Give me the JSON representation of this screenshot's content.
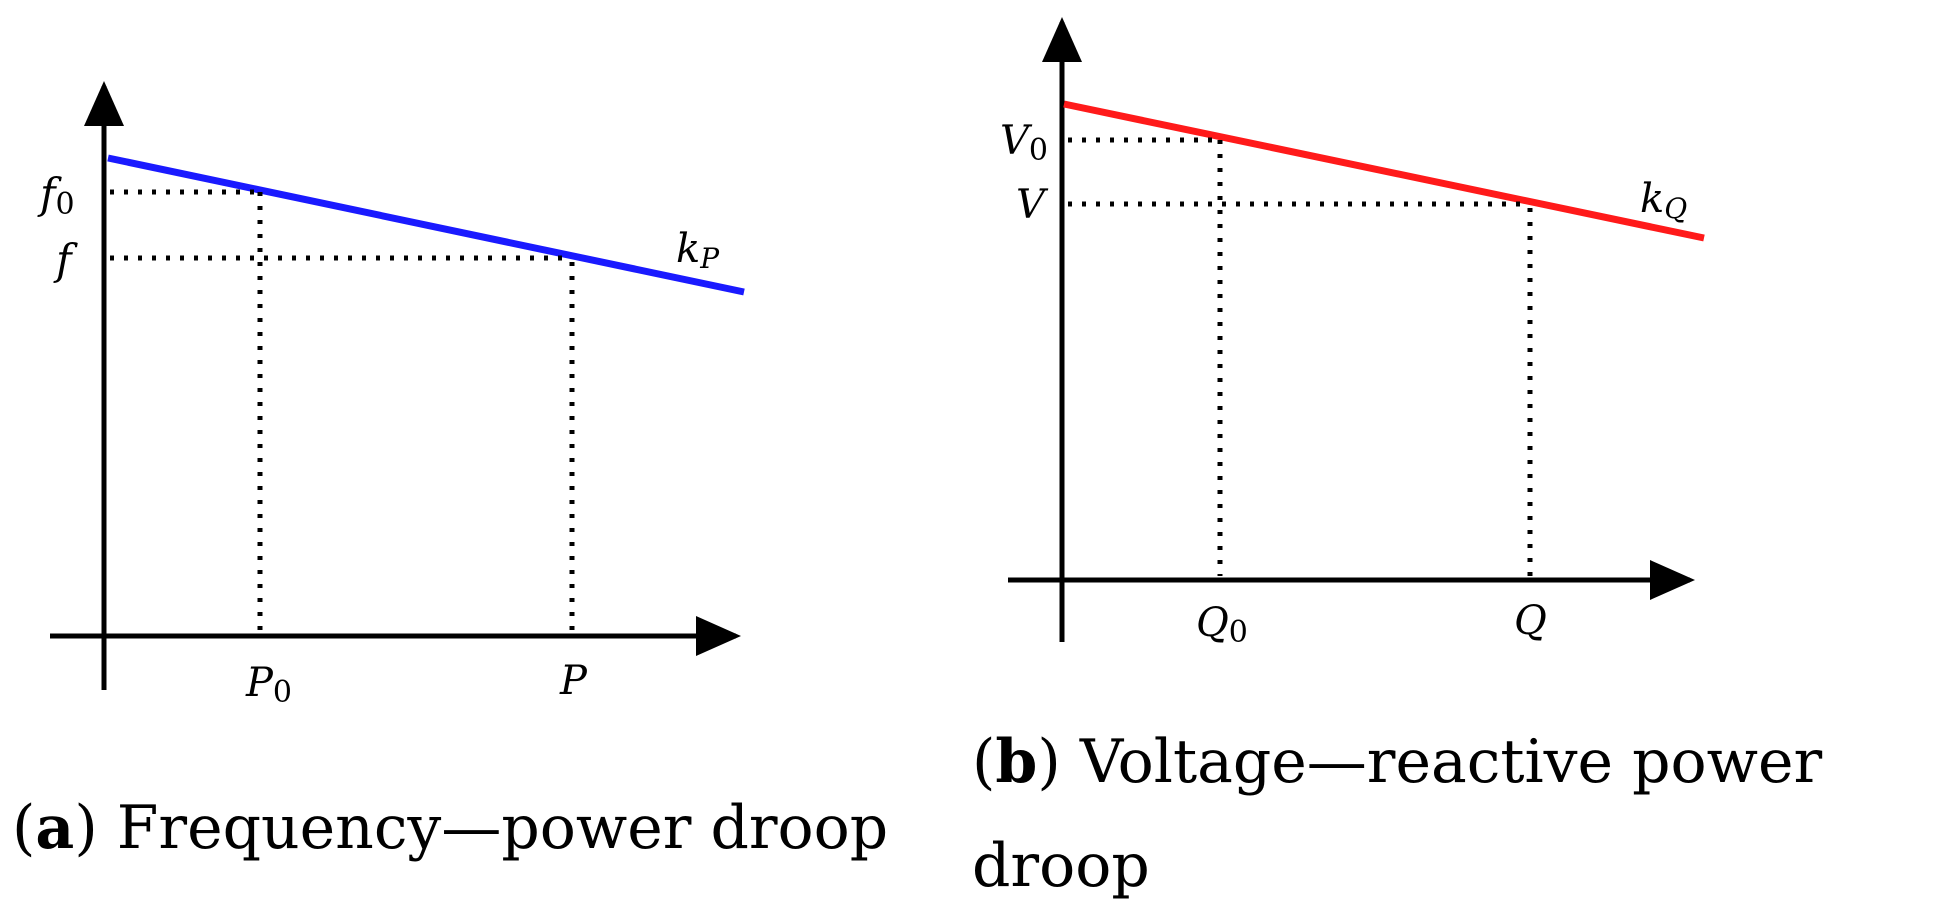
{
  "panel_a": {
    "caption_letter": "a",
    "caption_text": "Frequency—power droop",
    "line_color": "#1a1aff",
    "y_labels": {
      "f0_base": "f",
      "f0_sub": "0",
      "f": "f"
    },
    "x_labels": {
      "P0_base": "P",
      "P0_sub": "0",
      "P": "P"
    },
    "slope": {
      "base": "k",
      "sub": "P"
    }
  },
  "panel_b": {
    "caption_letter": "b",
    "caption_text_line1": "Voltage—reactive power",
    "caption_text_line2": "droop",
    "line_color": "#ff1a1a",
    "y_labels": {
      "V0_base": "V",
      "V0_sub": "0",
      "V": "V"
    },
    "x_labels": {
      "Q0_base": "Q",
      "Q0_sub": "0",
      "Q": "Q"
    },
    "slope": {
      "base": "k",
      "sub": "Q"
    }
  },
  "axis_color": "#000000"
}
